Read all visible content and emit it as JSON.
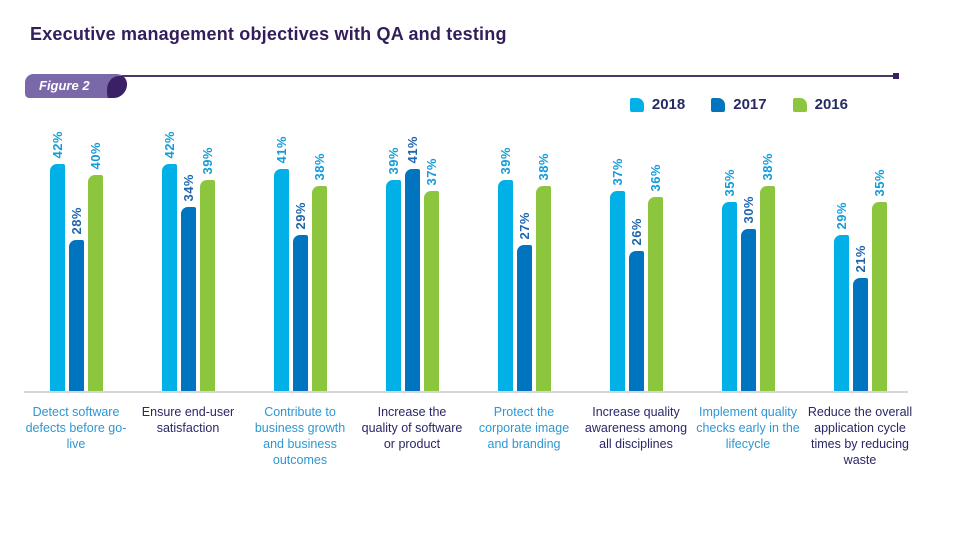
{
  "title": "Executive management objectives with QA and testing",
  "figure_label": "Figure 2",
  "colors": {
    "title_text": "#331D5B",
    "figure_badge": "#7A68A9",
    "figure_badge_accent": "#3A2166",
    "figure_rule": "#4A3768",
    "legend_text": "#262A64",
    "baseline": "#D6D6D6",
    "category_label_blue": "#2E97D2",
    "category_label_dark": "#2A2766"
  },
  "chart_data": {
    "type": "bar",
    "title": "Executive management objectives with QA and testing",
    "value_suffix": "%",
    "ylim": [
      0,
      45
    ],
    "grid": false,
    "legend_position": "top-right",
    "categories": [
      {
        "label": "Detect software defects before go-live",
        "label_color": "#2E97D2"
      },
      {
        "label": "Ensure end-user satisfaction",
        "label_color": "#2A2766"
      },
      {
        "label": "Contribute to business growth and business outcomes",
        "label_color": "#2E97D2"
      },
      {
        "label": "Increase the quality of software or product",
        "label_color": "#2A2766"
      },
      {
        "label": "Protect the corporate image and branding",
        "label_color": "#2E97D2"
      },
      {
        "label": "Increase quality awareness among all disciplines",
        "label_color": "#2A2766"
      },
      {
        "label": "Implement quality checks early in the lifecycle",
        "label_color": "#2E97D2"
      },
      {
        "label": "Reduce the overall application cycle times by reducing waste",
        "label_color": "#2A2766"
      }
    ],
    "series": [
      {
        "name": "2018",
        "color": "#00B0E6",
        "label_color": "#149BD9",
        "values": [
          42,
          42,
          41,
          39,
          39,
          37,
          35,
          29
        ]
      },
      {
        "name": "2017",
        "color": "#0074BE",
        "label_color": "#1F66AE",
        "values": [
          28,
          34,
          29,
          41,
          27,
          26,
          30,
          21
        ]
      },
      {
        "name": "2016",
        "color": "#8CC63F",
        "label_color": "#149BD9",
        "values": [
          40,
          39,
          38,
          37,
          38,
          36,
          38,
          35
        ]
      }
    ]
  }
}
